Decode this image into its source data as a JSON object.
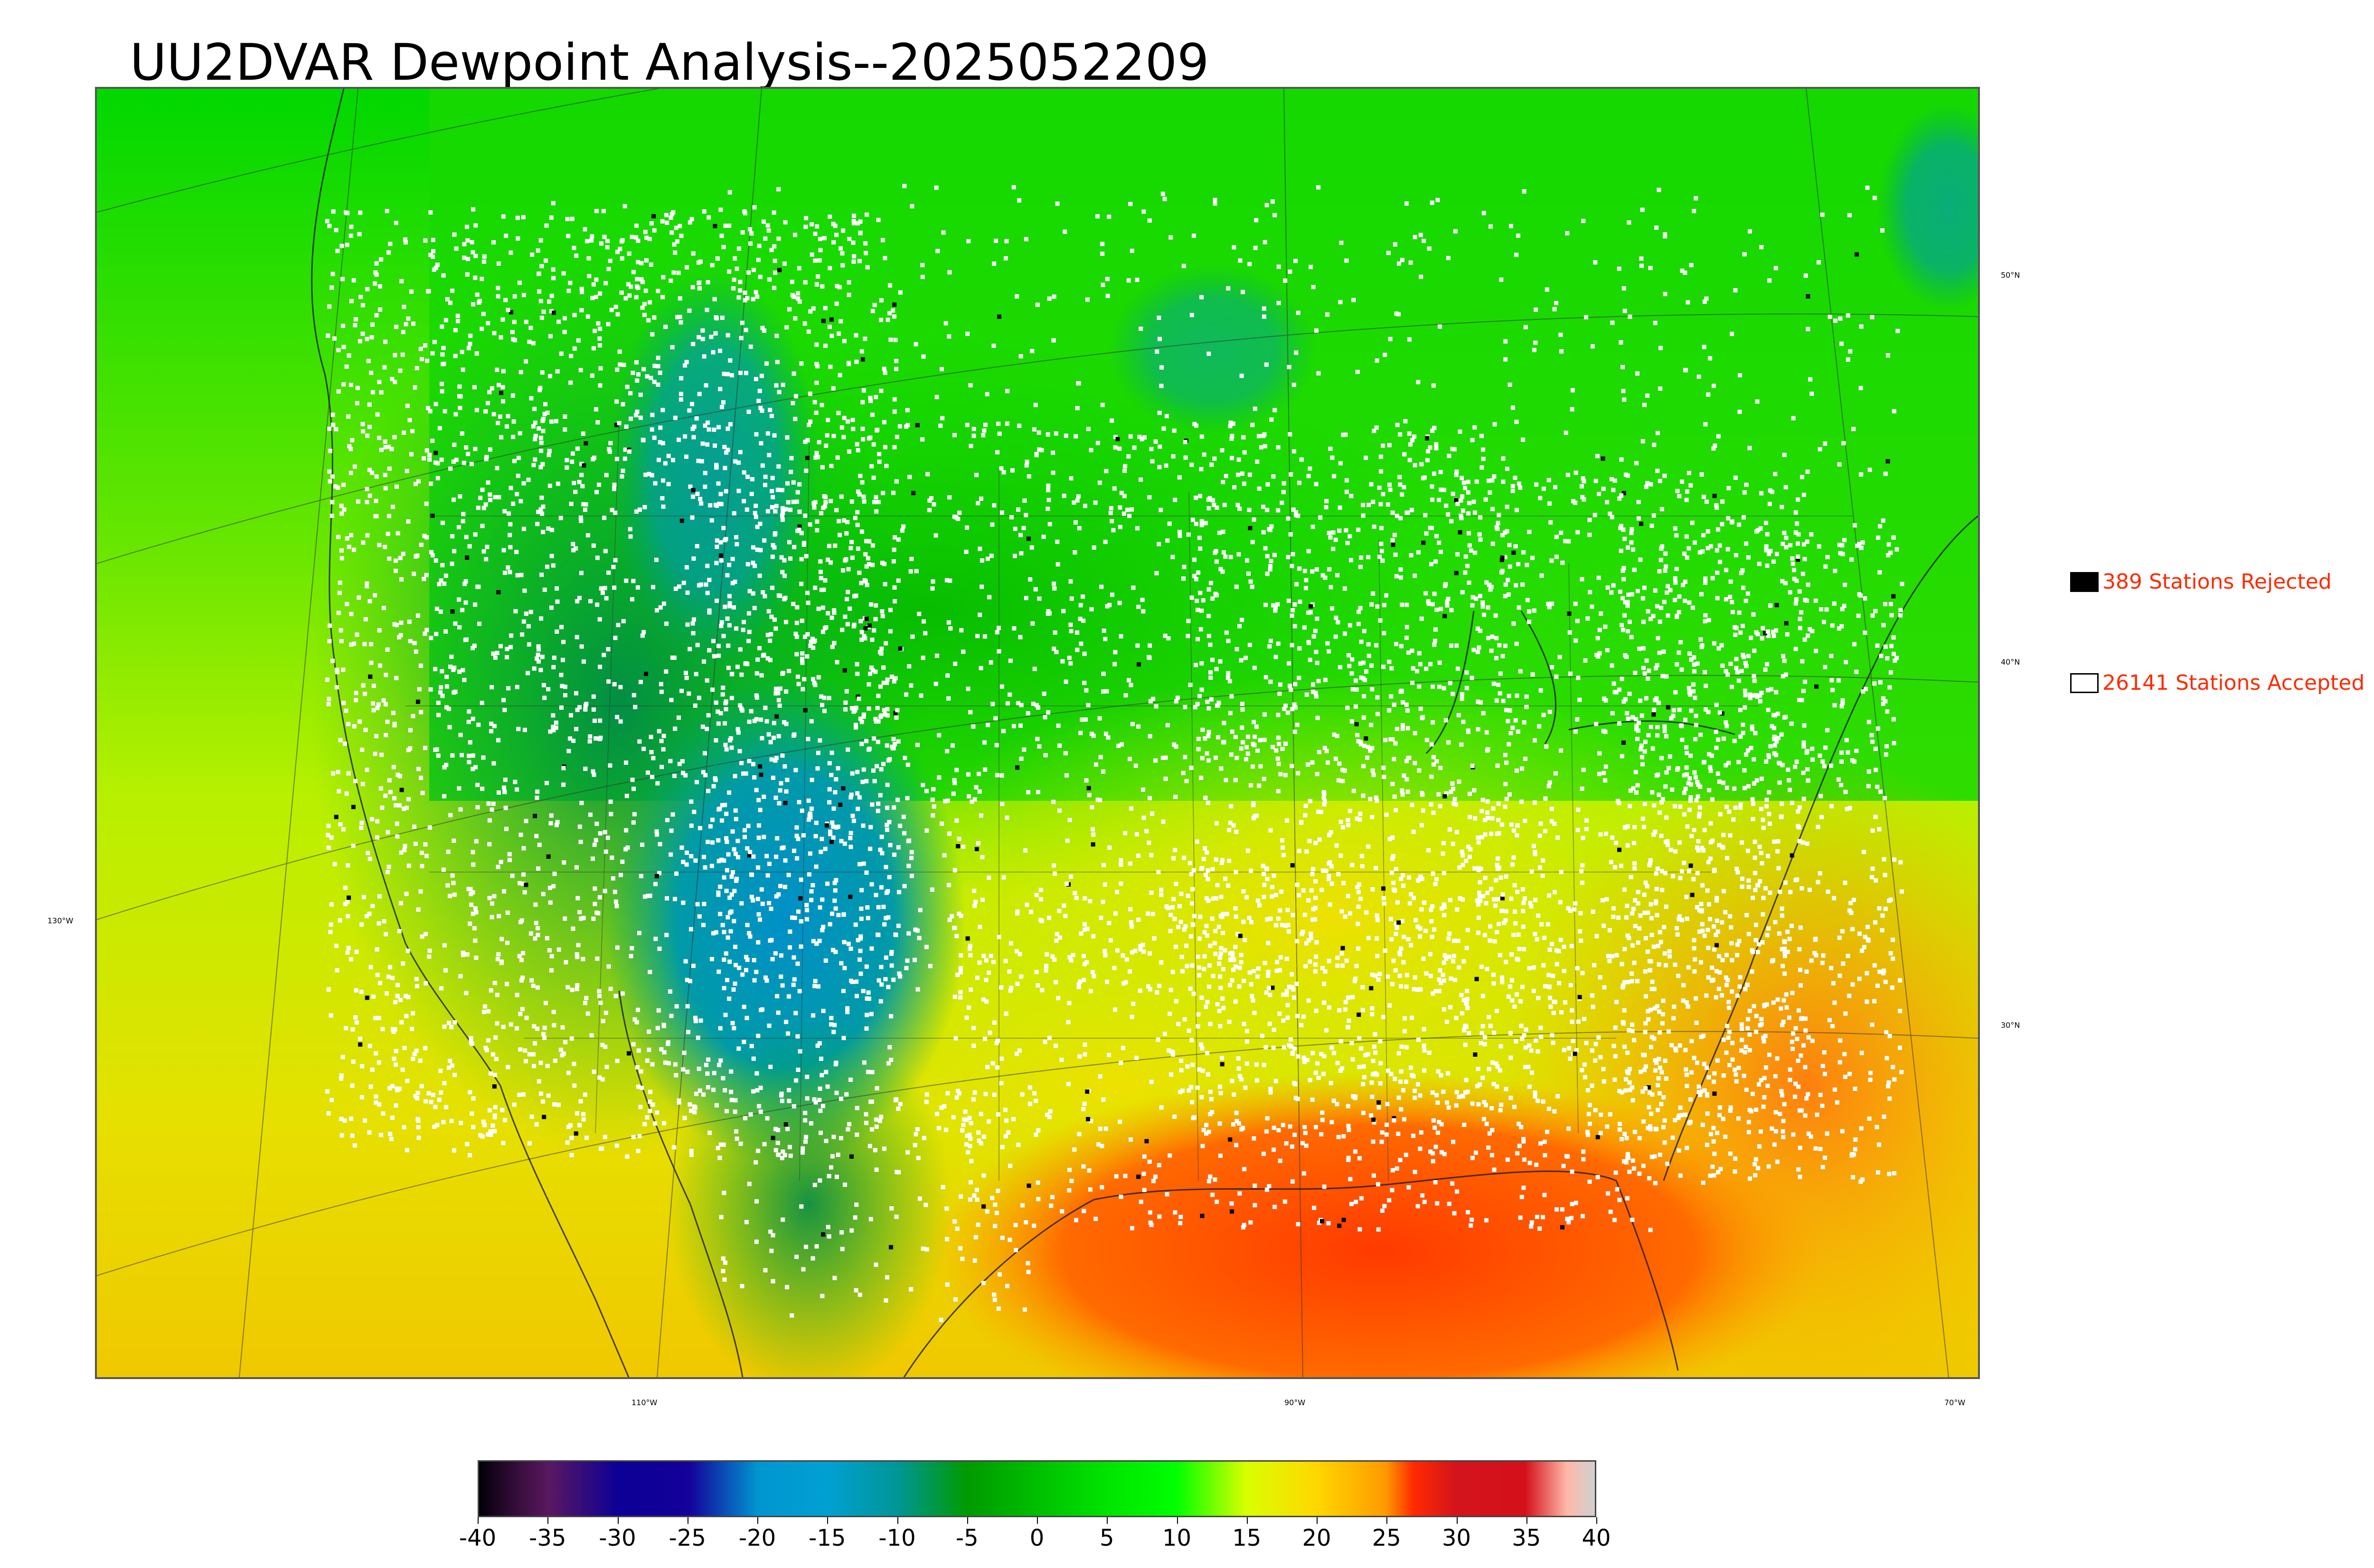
{
  "title": "UU2DVAR Dewpoint Analysis--2025052209",
  "map": {
    "lat_labels": [
      "50°N",
      "40°N",
      "30°N"
    ],
    "lon_labels": [
      "130°W",
      "110°W",
      "90°W",
      "70°W"
    ]
  },
  "legend": {
    "rejected": {
      "label": "389 Stations Rejected",
      "color": "#000000"
    },
    "accepted": {
      "label": "26141 Stations Accepted",
      "color": "#ffffff"
    }
  },
  "colorbar": {
    "ticks": [
      "-40",
      "-35",
      "-30",
      "-25",
      "-20",
      "-15",
      "-10",
      "-5",
      "0",
      "5",
      "10",
      "15",
      "20",
      "25",
      "30",
      "35",
      "40"
    ],
    "range": [
      -40,
      40
    ],
    "colors": {
      "-40": "#000008",
      "-38": "#2a0a2e",
      "-35": "#5a1860",
      "-30": "#0c0096",
      "-25": "#14009a",
      "-20": "#0096d0",
      "-15": "#00a0d2",
      "-10": "#009696",
      "-5": "#009a00",
      "0": "#00be00",
      "5": "#00e400",
      "10": "#00ff00",
      "15": "#d8ff00",
      "20": "#ffd800",
      "25": "#ff9a00",
      "27": "#ff2a00",
      "30": "#d4141c",
      "35": "#d4101a",
      "38": "#ffb8a8",
      "40": "#d0d0d0"
    }
  }
}
